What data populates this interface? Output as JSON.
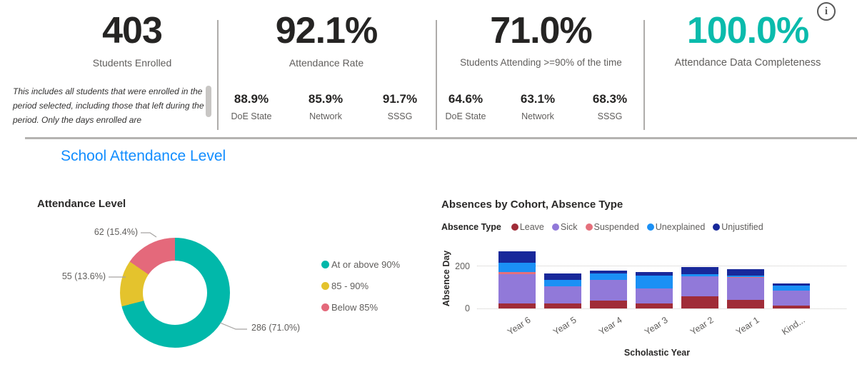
{
  "icons": {
    "info": "i"
  },
  "section_title": "School Attendance Level",
  "kpi": {
    "students_enrolled": {
      "value": "403",
      "label": "Students Enrolled",
      "note": "This includes all students that were enrolled in the period selected, including those that left during the period. Only the days enrolled are"
    },
    "attendance_rate": {
      "value": "92.1%",
      "label": "Attendance Rate",
      "benchmarks": [
        {
          "value": "88.9%",
          "label": "DoE State"
        },
        {
          "value": "85.9%",
          "label": "Network"
        },
        {
          "value": "91.7%",
          "label": "SSSG"
        }
      ]
    },
    "students_attending": {
      "value": "71.0%",
      "label": "Students Attending >=90% of the time",
      "benchmarks": [
        {
          "value": "64.6%",
          "label": "DoE State"
        },
        {
          "value": "63.1%",
          "label": "Network"
        },
        {
          "value": "68.3%",
          "label": "SSSG"
        }
      ]
    },
    "data_completeness": {
      "value": "100.0%",
      "label": "Attendance Data Completeness",
      "accent_color": "#0ABBAC"
    }
  },
  "chart_data": [
    {
      "type": "pie",
      "subtype": "donut",
      "title": "Attendance Level",
      "legend_position": "right",
      "slices": [
        {
          "label": "At or above 90%",
          "value": 286,
          "pct": 71.0,
          "data_label": "286 (71.0%)",
          "color": "#01B8AA"
        },
        {
          "label": "85 - 90%",
          "value": 55,
          "pct": 13.6,
          "data_label": "55 (13.6%)",
          "color": "#E4C32D"
        },
        {
          "label": "Below 85%",
          "value": 62,
          "pct": 15.4,
          "data_label": "62 (15.4%)",
          "color": "#E4697B"
        }
      ]
    },
    {
      "type": "bar",
      "subtype": "stacked-column",
      "title": "Absences by Cohort, Absence Type",
      "legend_title": "Absence Type",
      "legend_position": "top",
      "xlabel": "Scholastic Year",
      "ylabel": "Absence Day",
      "yticks": [
        0,
        200
      ],
      "ylim": [
        0,
        280
      ],
      "grid": "dotted-horizontal",
      "categories": [
        "Year 6",
        "Year 5",
        "Year 4",
        "Year 3",
        "Year 2",
        "Year 1",
        "Kind..."
      ],
      "series": [
        {
          "name": "Leave",
          "color": "#A02C38",
          "values": [
            25,
            25,
            38,
            25,
            58,
            40,
            13
          ]
        },
        {
          "name": "Sick",
          "color": "#9179D9",
          "values": [
            135,
            80,
            95,
            70,
            92,
            102,
            70
          ]
        },
        {
          "name": "Suspended",
          "color": "#E5707C",
          "values": [
            10,
            0,
            0,
            0,
            0,
            5,
            0
          ]
        },
        {
          "name": "Unexplained",
          "color": "#1B90F5",
          "values": [
            45,
            30,
            30,
            58,
            10,
            8,
            25
          ]
        },
        {
          "name": "Unjustified",
          "color": "#18289A",
          "values": [
            52,
            30,
            15,
            18,
            35,
            30,
            8
          ]
        }
      ]
    }
  ]
}
